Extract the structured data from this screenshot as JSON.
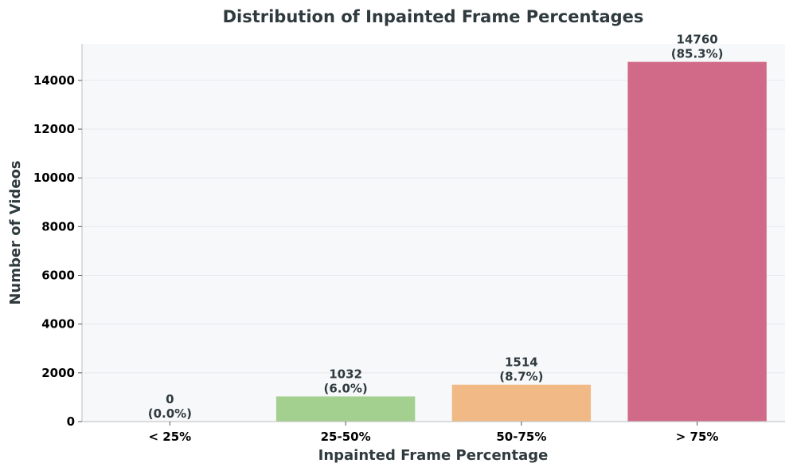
{
  "chart_data": {
    "type": "bar",
    "title": "Distribution of Inpainted Frame Percentages",
    "xlabel": "Inpainted Frame Percentage",
    "ylabel": "Number of Videos",
    "categories": [
      "< 25%",
      "25-50%",
      "50-75%",
      "> 75%"
    ],
    "values": [
      0,
      1032,
      1514,
      14760
    ],
    "value_labels": [
      "0",
      "1032",
      "1514",
      "14760"
    ],
    "percent_labels": [
      "(0.0%)",
      "(6.0%)",
      "(8.7%)",
      "(85.3%)"
    ],
    "colors": [
      "#a3cf8f",
      "#a3cf8f",
      "#f0b985",
      "#d16a89"
    ],
    "ylim": [
      0,
      15500
    ],
    "yticks": [
      0,
      2000,
      4000,
      6000,
      8000,
      10000,
      12000,
      14000
    ],
    "grid": true,
    "legend": "none",
    "plot_background": "#f7f8fa"
  }
}
